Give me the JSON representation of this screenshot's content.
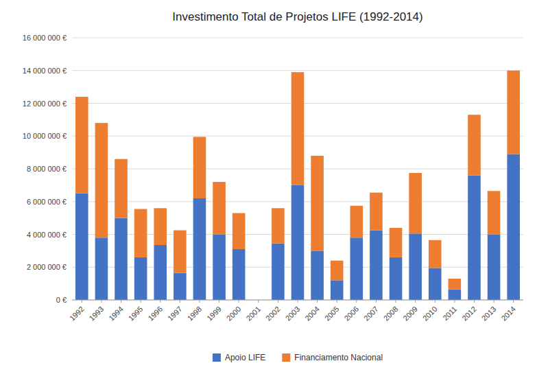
{
  "chart_data": {
    "type": "bar",
    "stacked": true,
    "title": "Investimento Total de Projetos LIFE (1992-2014)",
    "categories": [
      "1992",
      "1993",
      "1994",
      "1995",
      "1996",
      "1997",
      "1998",
      "1999",
      "2000",
      "2001",
      "2002",
      "2003",
      "2004",
      "2005",
      "2006",
      "2007",
      "2008",
      "2009",
      "2010",
      "2011",
      "2012",
      "2013",
      "2014"
    ],
    "series": [
      {
        "name": "Apoio LIFE",
        "color": "#4472c4",
        "values": [
          6500000,
          3800000,
          5000000,
          2600000,
          3350000,
          1650000,
          6200000,
          4000000,
          3100000,
          0,
          3450000,
          7000000,
          3000000,
          1200000,
          3800000,
          4250000,
          2600000,
          4050000,
          1950000,
          650000,
          7600000,
          4000000,
          8900000
        ]
      },
      {
        "name": "Financiamento Nacional",
        "color": "#ed7d31",
        "values": [
          5900000,
          7000000,
          3600000,
          2950000,
          2250000,
          2600000,
          3750000,
          3200000,
          2200000,
          0,
          2150000,
          6900000,
          5800000,
          1200000,
          1950000,
          2300000,
          1800000,
          3700000,
          1700000,
          650000,
          3700000,
          2650000,
          5100000
        ]
      }
    ],
    "ylim": [
      0,
      16000000
    ],
    "yticks": [
      {
        "value": 0,
        "label": "0 €"
      },
      {
        "value": 2000000,
        "label": "2 000 000 €"
      },
      {
        "value": 4000000,
        "label": "4 000 000 €"
      },
      {
        "value": 6000000,
        "label": "6 000 000 €"
      },
      {
        "value": 8000000,
        "label": "8 000 000 €"
      },
      {
        "value": 10000000,
        "label": "10 000 000 €"
      },
      {
        "value": 12000000,
        "label": "12 000 000 €"
      },
      {
        "value": 14000000,
        "label": "14 000 000 €"
      },
      {
        "value": 16000000,
        "label": "16 000 000 €"
      }
    ],
    "grid": true,
    "legend": "bottom"
  }
}
